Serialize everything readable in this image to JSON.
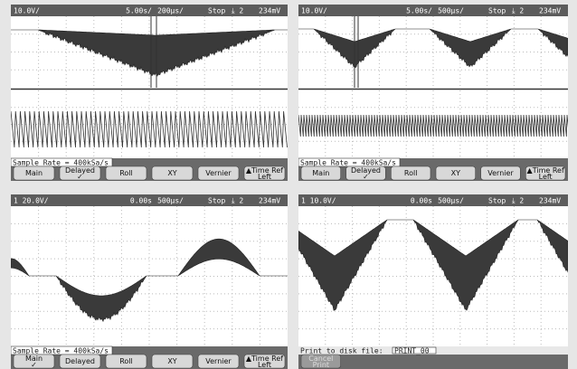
{
  "panels": [
    {
      "status": {
        "channel": "10.0V/",
        "main_scale": "5.00s/",
        "delay_scale": "200µs/",
        "state": "Stop",
        "trigger": "⤓ 2",
        "level": "234mV"
      },
      "message": "Sample Rate = 400kSa/s",
      "softkeys": [
        {
          "label": "Main"
        },
        {
          "label": "Delayed",
          "sub": "✓"
        },
        {
          "label": "Roll"
        },
        {
          "label": "XY"
        },
        {
          "label": "Vernier"
        },
        {
          "label": "▲Time Ref",
          "sub": "Left"
        }
      ]
    },
    {
      "status": {
        "channel": "10.0V/",
        "main_scale": "5.00s/",
        "delay_scale": "500µs/",
        "state": "Stop",
        "trigger": "⤓ 2",
        "level": "234mV"
      },
      "message": "Sample Rate = 400kSa/s",
      "softkeys": [
        {
          "label": "Main"
        },
        {
          "label": "Delayed",
          "sub": "✓"
        },
        {
          "label": "Roll"
        },
        {
          "label": "XY"
        },
        {
          "label": "Vernier"
        },
        {
          "label": "▲Time Ref",
          "sub": "Left"
        }
      ]
    },
    {
      "status": {
        "channel": "1 20.0V/",
        "main_scale": "0.00s",
        "delay_scale": "500µs/",
        "state": "Stop",
        "trigger": "⤓ 2",
        "level": "234mV"
      },
      "message": "Sample Rate = 400kSa/s",
      "softkeys": [
        {
          "label": "Main",
          "sub": "✓"
        },
        {
          "label": "Delayed"
        },
        {
          "label": "Roll"
        },
        {
          "label": "XY"
        },
        {
          "label": "Vernier"
        },
        {
          "label": "▲Time Ref",
          "sub": "Left"
        }
      ]
    },
    {
      "status": {
        "channel": "1 10.0V/",
        "main_scale": "0.00s",
        "delay_scale": "500µs/",
        "state": "Stop",
        "trigger": "⤓ 2",
        "level": "234mV"
      },
      "message": "Print to disk file:",
      "file": "PRINT_00",
      "softkeys": [
        {
          "label": "Cancel",
          "sub": "Print"
        }
      ]
    }
  ]
}
